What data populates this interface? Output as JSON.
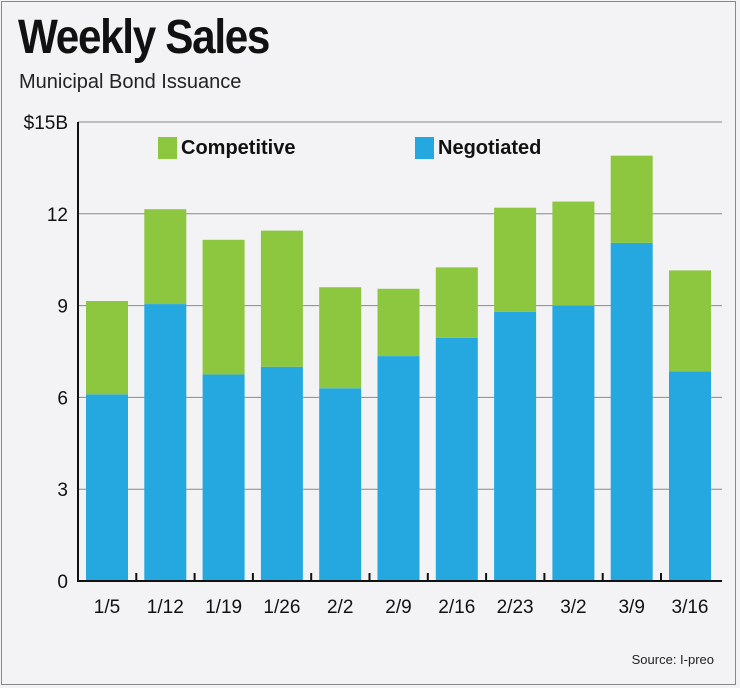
{
  "title": "Weekly Sales",
  "subtitle": "Municipal Bond Issuance",
  "source": "Source: I-preo",
  "chart_data": {
    "type": "bar",
    "stacked": true,
    "title": "Weekly Sales",
    "subtitle": "Municipal Bond Issuance",
    "categories": [
      "1/5",
      "1/12",
      "1/19",
      "1/26",
      "2/2",
      "2/9",
      "2/16",
      "2/23",
      "3/2",
      "3/9",
      "3/16"
    ],
    "series": [
      {
        "name": "Negotiated",
        "color": "#25a8e0",
        "values": [
          6.1,
          9.05,
          6.75,
          7.0,
          6.3,
          7.35,
          7.95,
          8.8,
          9.0,
          11.05,
          6.85
        ]
      },
      {
        "name": "Competitive",
        "color": "#8dc63f",
        "values": [
          3.05,
          3.1,
          4.4,
          4.45,
          3.3,
          2.2,
          2.3,
          3.4,
          3.4,
          2.85,
          3.3
        ]
      }
    ],
    "yticks": [
      "0",
      "3",
      "6",
      "9",
      "12",
      "$15B"
    ],
    "ytick_values": [
      0,
      3,
      6,
      9,
      12,
      15
    ],
    "ylim": [
      0,
      15
    ],
    "grid": true,
    "legend": "top"
  }
}
